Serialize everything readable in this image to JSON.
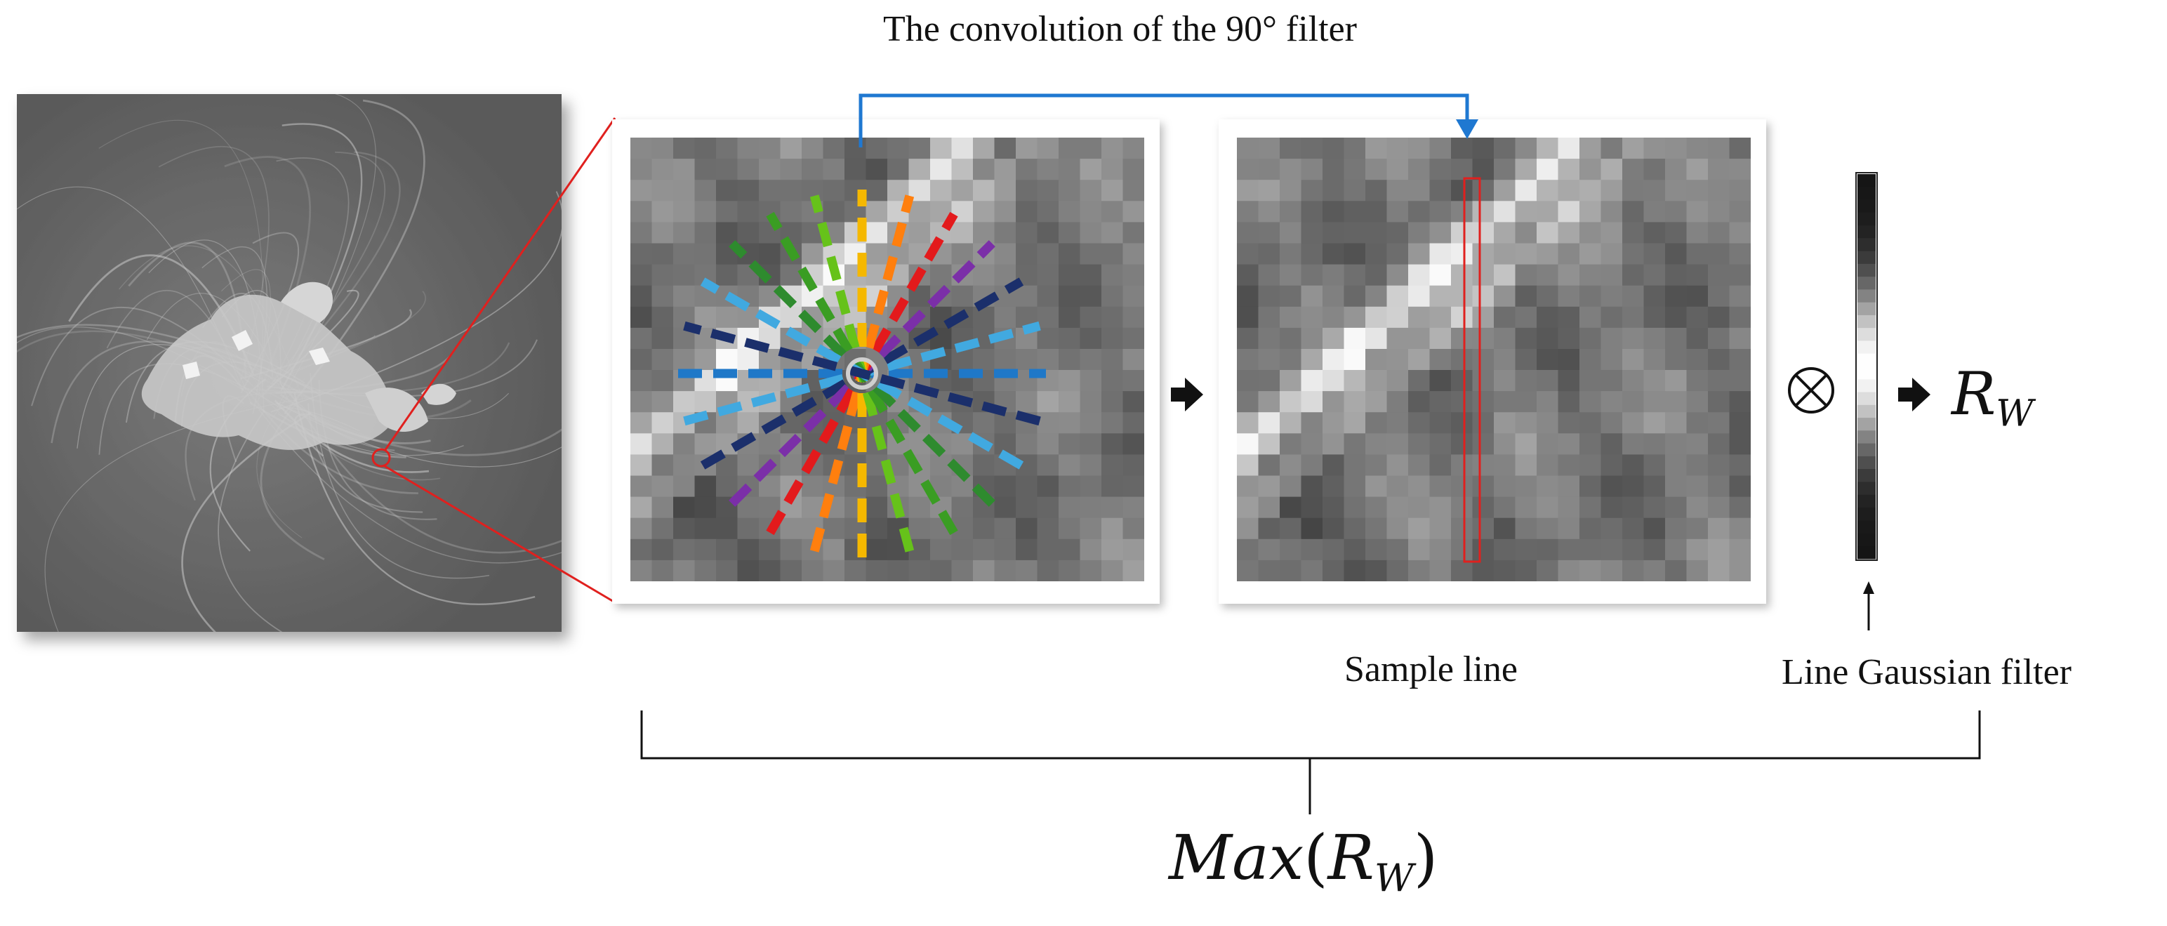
{
  "title": "The convolution of the 90° filter",
  "sample_line_label": "Sample line",
  "line_gaussian_label": "Line Gaussian filter",
  "conv_symbol": "⊗",
  "rw": {
    "base": "R",
    "sub": "W"
  },
  "max_expr": {
    "fn": "Max",
    "open": "(",
    "base": "R",
    "sub": "W",
    "close": ")"
  },
  "filter_angles_deg": [
    0,
    15,
    30,
    45,
    60,
    75,
    90,
    105,
    120,
    135,
    150,
    165
  ],
  "filter_colors": [
    "#1f78c8",
    "#41a9e0",
    "#1b2f6b",
    "#7b2fa8",
    "#e31a1c",
    "#ff7f0e",
    "#f5b800",
    "#66c21a",
    "#3a9d23",
    "#2e8b2e",
    "#41a9e0",
    "#1b2f6b"
  ],
  "colors": {
    "blue_arrow": "#1f78d1",
    "red_lines": "#e0201e",
    "black": "#111111"
  },
  "icons": {
    "conv": "otimes-icon",
    "arrow": "right-arrow-icon"
  }
}
